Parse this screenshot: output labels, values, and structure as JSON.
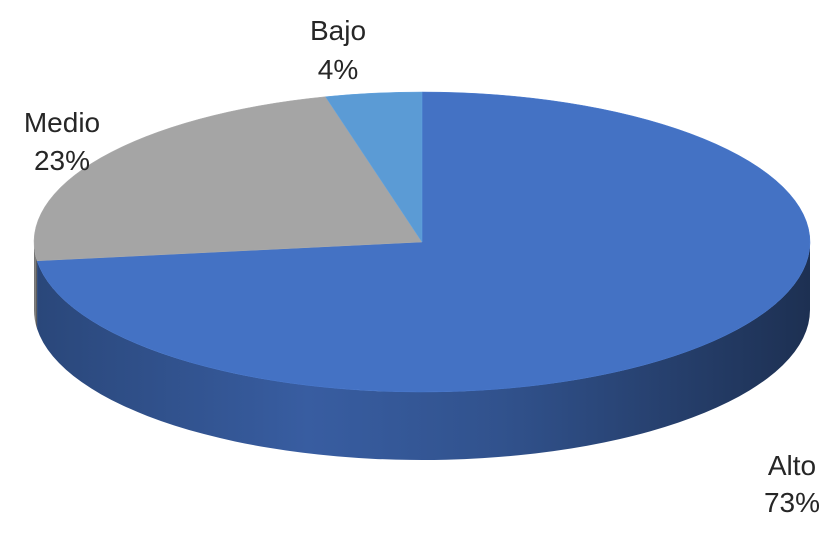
{
  "chart_data": {
    "type": "pie",
    "style": "3d",
    "title": "",
    "slices": [
      {
        "name": "Alto",
        "label": "Alto",
        "value": 73,
        "pct_label": "73%",
        "color": "#4472c4"
      },
      {
        "name": "Medio",
        "label": "Medio",
        "value": 23,
        "pct_label": "23%",
        "color": "#a5a5a5"
      },
      {
        "name": "Bajo",
        "label": "Bajo",
        "value": 4,
        "pct_label": "4%",
        "color": "#5b9bd5"
      }
    ],
    "legend": "none",
    "data_labels": "outside"
  }
}
